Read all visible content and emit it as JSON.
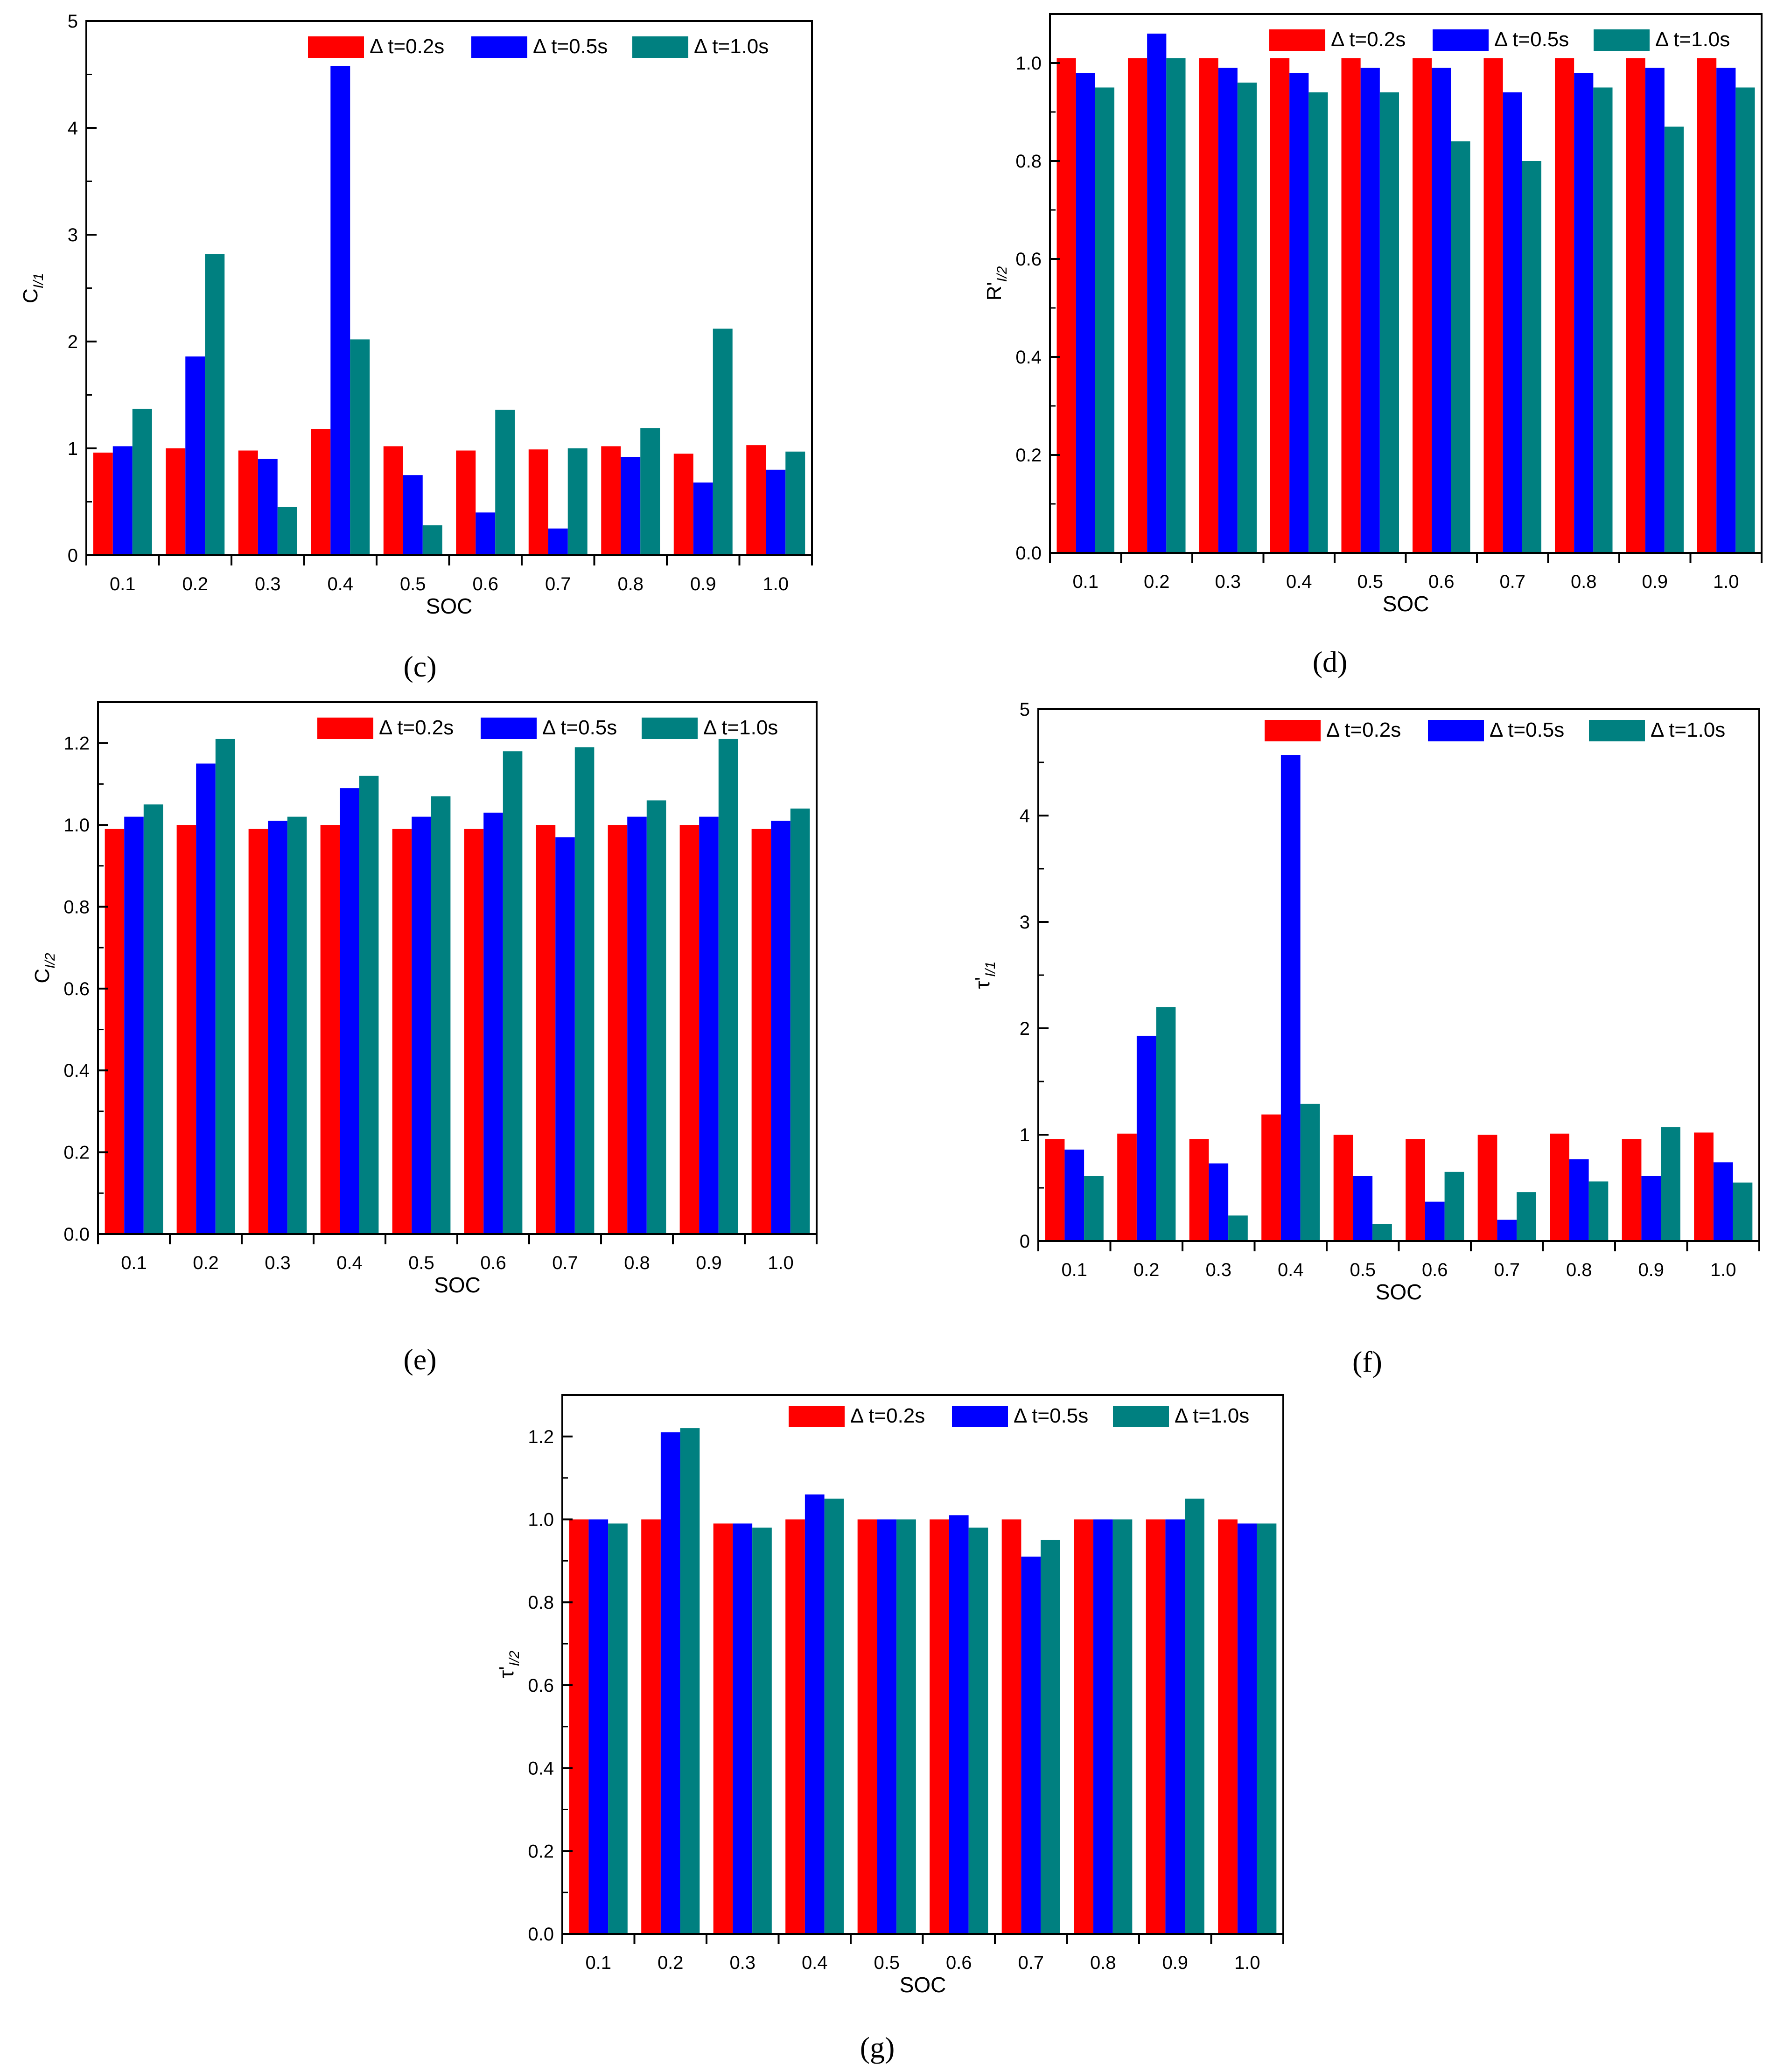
{
  "colors": {
    "s1": "#ff0000",
    "s2": "#0000ff",
    "s3": "#008080"
  },
  "chart_data": [
    {
      "type": "bar",
      "panel": "(c)",
      "ylabel": "C_{I/1}",
      "ylabel_main": "C",
      "ylabel_sub": "I/1",
      "xlabel": "SOC",
      "categories": [
        "0.1",
        "0.2",
        "0.3",
        "0.4",
        "0.5",
        "0.6",
        "0.7",
        "0.8",
        "0.9",
        "1.0"
      ],
      "ylim": [
        0,
        5
      ],
      "yticks": [
        "0",
        "1",
        "2",
        "3",
        "4",
        "5"
      ],
      "ytick_values": [
        0,
        1,
        2,
        3,
        4,
        5
      ],
      "series": [
        {
          "name": "Δ t=0.2s",
          "values": [
            0.96,
            1.0,
            0.98,
            1.18,
            1.02,
            0.98,
            0.99,
            1.02,
            0.95,
            1.03
          ]
        },
        {
          "name": "Δ t=0.5s",
          "values": [
            1.02,
            1.86,
            0.9,
            4.58,
            0.75,
            0.4,
            0.25,
            0.92,
            0.68,
            0.8
          ]
        },
        {
          "name": "Δ t=1.0s",
          "values": [
            1.37,
            2.82,
            0.45,
            2.02,
            0.28,
            1.36,
            1.0,
            1.19,
            2.12,
            0.97
          ]
        }
      ]
    },
    {
      "type": "bar",
      "panel": "(d)",
      "ylabel": "R'_{I/2}",
      "ylabel_main": "R'",
      "ylabel_sub": "I/2",
      "xlabel": "SOC",
      "categories": [
        "0.1",
        "0.2",
        "0.3",
        "0.4",
        "0.5",
        "0.6",
        "0.7",
        "0.8",
        "0.9",
        "1.0"
      ],
      "ylim": [
        0,
        1.1
      ],
      "yticks": [
        "0.0",
        "0.2",
        "0.4",
        "0.6",
        "0.8",
        "1.0"
      ],
      "ytick_values": [
        0,
        0.2,
        0.4,
        0.6,
        0.8,
        1.0
      ],
      "series": [
        {
          "name": "Δ t=0.2s",
          "values": [
            1.01,
            1.01,
            1.01,
            1.01,
            1.01,
            1.01,
            1.01,
            1.01,
            1.01,
            1.01
          ]
        },
        {
          "name": "Δ t=0.5s",
          "values": [
            0.98,
            1.06,
            0.99,
            0.98,
            0.99,
            0.99,
            0.94,
            0.98,
            0.99,
            0.99
          ]
        },
        {
          "name": "Δ t=1.0s",
          "values": [
            0.95,
            1.01,
            0.96,
            0.94,
            0.94,
            0.84,
            0.8,
            0.95,
            0.87,
            0.95
          ]
        }
      ]
    },
    {
      "type": "bar",
      "panel": "(e)",
      "ylabel": "C_{I/2}",
      "ylabel_main": "C",
      "ylabel_sub": "I/2",
      "xlabel": "SOC",
      "categories": [
        "0.1",
        "0.2",
        "0.3",
        "0.4",
        "0.5",
        "0.6",
        "0.7",
        "0.8",
        "0.9",
        "1.0"
      ],
      "ylim": [
        0,
        1.3
      ],
      "yticks": [
        "0.0",
        "0.2",
        "0.4",
        "0.6",
        "0.8",
        "1.0",
        "1.2"
      ],
      "ytick_values": [
        0,
        0.2,
        0.4,
        0.6,
        0.8,
        1.0,
        1.2
      ],
      "series": [
        {
          "name": "Δ t=0.2s",
          "values": [
            0.99,
            1.0,
            0.99,
            1.0,
            0.99,
            0.99,
            1.0,
            1.0,
            1.0,
            0.99
          ]
        },
        {
          "name": "Δ t=0.5s",
          "values": [
            1.02,
            1.15,
            1.01,
            1.09,
            1.02,
            1.03,
            0.97,
            1.02,
            1.02,
            1.01
          ]
        },
        {
          "name": "Δ t=1.0s",
          "values": [
            1.05,
            1.21,
            1.02,
            1.12,
            1.07,
            1.18,
            1.19,
            1.06,
            1.21,
            1.04
          ]
        }
      ]
    },
    {
      "type": "bar",
      "panel": "(f)",
      "ylabel": "τ'_{I/1}",
      "ylabel_main": "τ'",
      "ylabel_sub": "I/1",
      "xlabel": "SOC",
      "categories": [
        "0.1",
        "0.2",
        "0.3",
        "0.4",
        "0.5",
        "0.6",
        "0.7",
        "0.8",
        "0.9",
        "1.0"
      ],
      "ylim": [
        0,
        5
      ],
      "yticks": [
        "0",
        "1",
        "2",
        "3",
        "4",
        "5"
      ],
      "ytick_values": [
        0,
        1,
        2,
        3,
        4,
        5
      ],
      "series": [
        {
          "name": "Δ t=0.2s",
          "values": [
            0.96,
            1.01,
            0.96,
            1.19,
            1.0,
            0.96,
            1.0,
            1.01,
            0.96,
            1.02
          ]
        },
        {
          "name": "Δ t=0.5s",
          "values": [
            0.86,
            1.93,
            0.73,
            4.57,
            0.61,
            0.37,
            0.2,
            0.77,
            0.61,
            0.74
          ]
        },
        {
          "name": "Δ t=1.0s",
          "values": [
            0.61,
            2.2,
            0.24,
            1.29,
            0.16,
            0.65,
            0.46,
            0.56,
            1.07,
            0.55
          ]
        }
      ]
    },
    {
      "type": "bar",
      "panel": "(g)",
      "ylabel": "τ'_{I/2}",
      "ylabel_main": "τ'",
      "ylabel_sub": "I/2",
      "xlabel": "SOC",
      "categories": [
        "0.1",
        "0.2",
        "0.3",
        "0.4",
        "0.5",
        "0.6",
        "0.7",
        "0.8",
        "0.9",
        "1.0"
      ],
      "ylim": [
        0,
        1.3
      ],
      "yticks": [
        "0.0",
        "0.2",
        "0.4",
        "0.6",
        "0.8",
        "1.0",
        "1.2"
      ],
      "ytick_values": [
        0,
        0.2,
        0.4,
        0.6,
        0.8,
        1.0,
        1.2
      ],
      "series": [
        {
          "name": "Δ t=0.2s",
          "values": [
            1.0,
            1.0,
            0.99,
            1.0,
            1.0,
            1.0,
            1.0,
            1.0,
            1.0,
            1.0
          ]
        },
        {
          "name": "Δ t=0.5s",
          "values": [
            1.0,
            1.21,
            0.99,
            1.06,
            1.0,
            1.01,
            0.91,
            1.0,
            1.0,
            0.99
          ]
        },
        {
          "name": "Δ t=1.0s",
          "values": [
            0.99,
            1.22,
            0.98,
            1.05,
            1.0,
            0.98,
            0.95,
            1.0,
            1.05,
            0.99
          ]
        }
      ]
    }
  ]
}
